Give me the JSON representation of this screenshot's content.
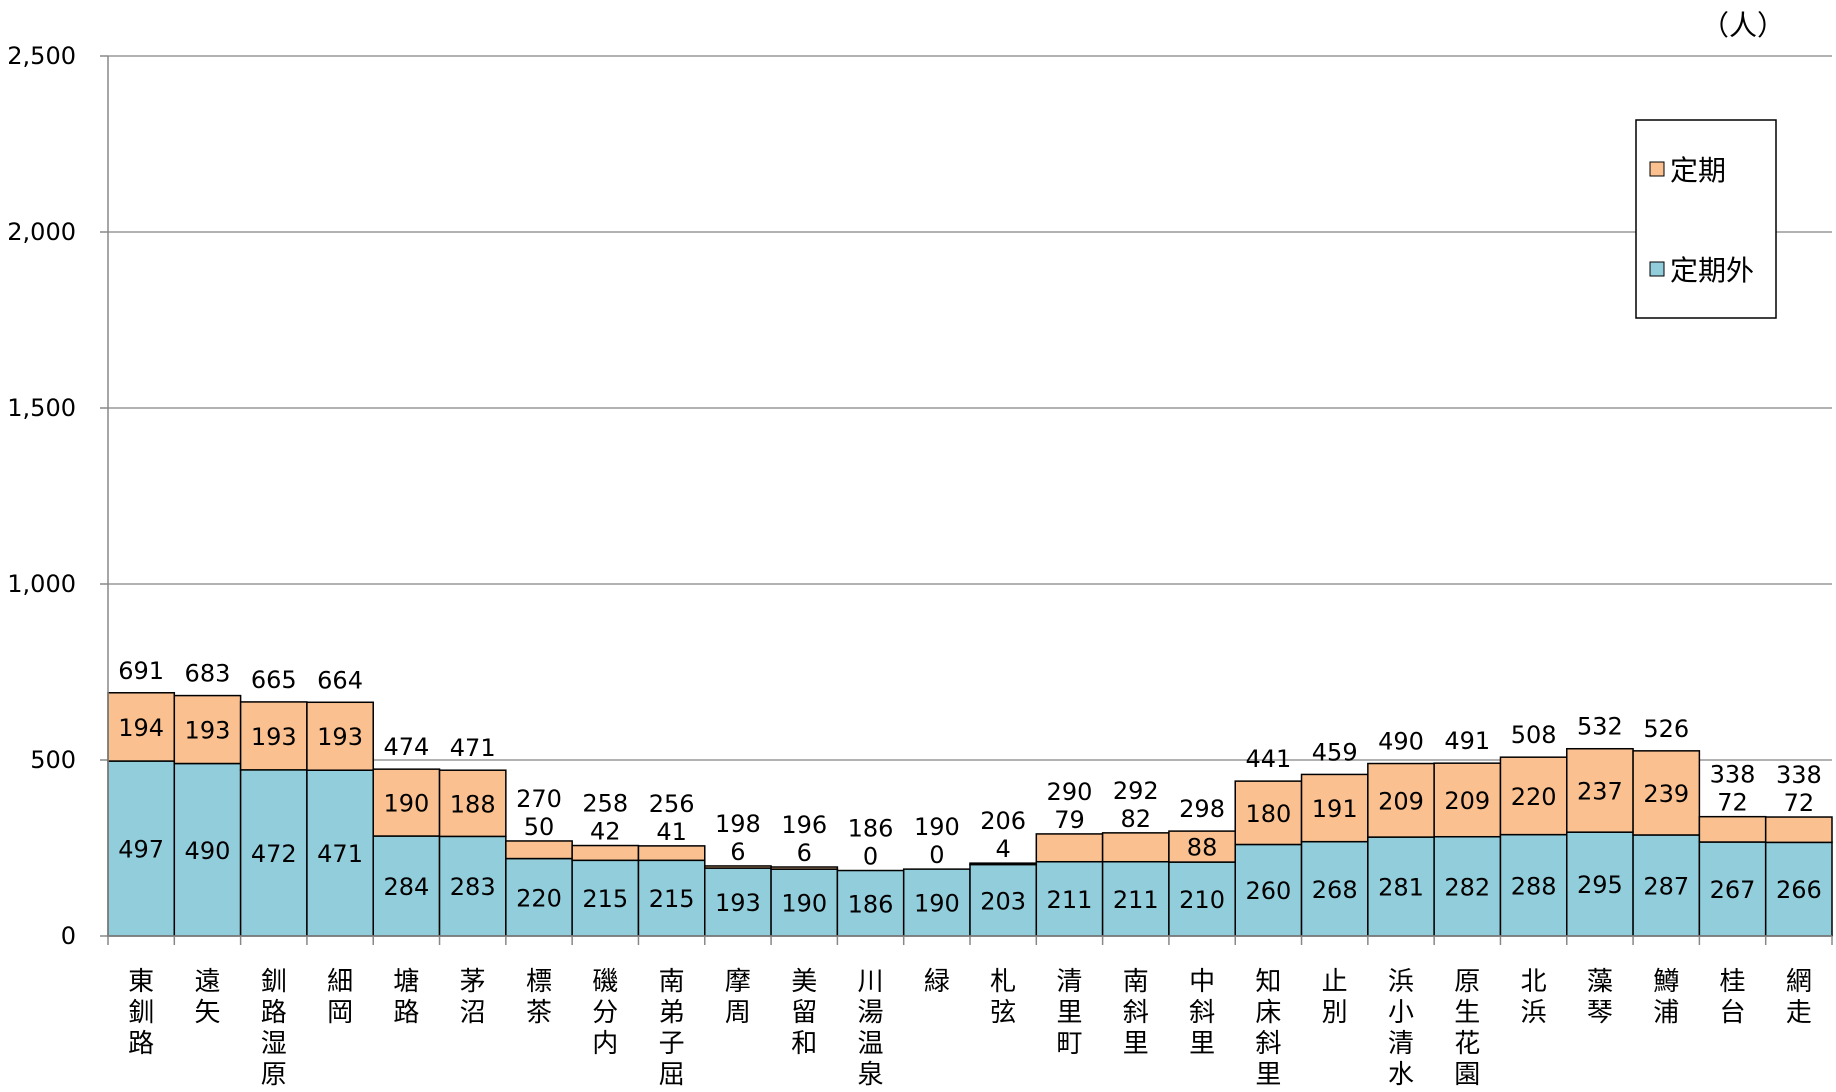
{
  "chart_data": {
    "type": "bar",
    "stacked": true,
    "unit": "（人）",
    "ylim": [
      0,
      2500
    ],
    "yticks": [
      0,
      500,
      1000,
      1500,
      2000,
      2500
    ],
    "ytick_labels": [
      "0",
      "500",
      "1,000",
      "1,500",
      "2,000",
      "2,500"
    ],
    "grid": true,
    "legend": {
      "placement": "top-right",
      "order": [
        "定期",
        "定期外"
      ]
    },
    "categories": [
      "東釧路",
      "遠矢",
      "釧路湿原",
      "細岡",
      "塘路",
      "茅沼",
      "標茶",
      "磯分内",
      "南弟子屈",
      "摩周",
      "美留和",
      "川湯温泉",
      "緑",
      "札弦",
      "清里町",
      "南斜里",
      "中斜里",
      "知床斜里",
      "止別",
      "浜小清水",
      "原生花園",
      "北浜",
      "藻琴",
      "鱒浦",
      "桂台",
      "網走"
    ],
    "series": [
      {
        "name": "定期外",
        "color": "#92CDDC",
        "values": [
          497,
          490,
          472,
          471,
          284,
          283,
          220,
          215,
          215,
          193,
          190,
          186,
          190,
          203,
          211,
          211,
          210,
          260,
          268,
          281,
          282,
          288,
          295,
          287,
          267,
          266
        ]
      },
      {
        "name": "定期",
        "color": "#FAC090",
        "values": [
          194,
          193,
          193,
          193,
          190,
          188,
          50,
          42,
          41,
          6,
          6,
          0,
          0,
          4,
          79,
          82,
          88,
          180,
          191,
          209,
          209,
          220,
          237,
          239,
          72,
          72
        ]
      }
    ],
    "totals": [
      691,
      683,
      665,
      664,
      474,
      471,
      270,
      258,
      256,
      198,
      196,
      186,
      190,
      206,
      290,
      292,
      298,
      441,
      459,
      490,
      491,
      508,
      532,
      526,
      338,
      338
    ]
  }
}
